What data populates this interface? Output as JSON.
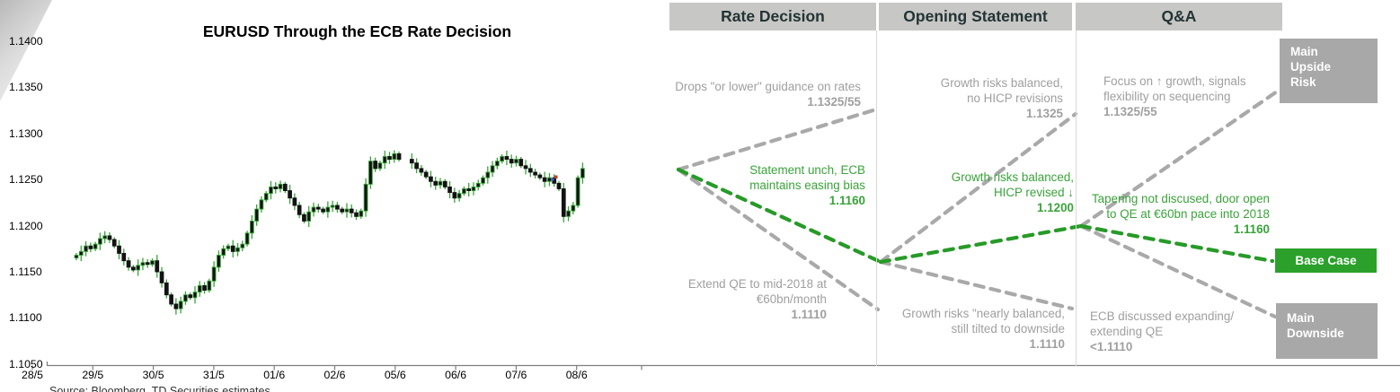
{
  "chart_data": {
    "type": "candlestick",
    "title": "EURUSD Through the ECB Rate Decision",
    "instrument": "EURUSD",
    "grid": false,
    "y_ticks": [
      "1.1400",
      "1.1350",
      "1.1300",
      "1.1250",
      "1.1200",
      "1.1150",
      "1.1100",
      "1.1050"
    ],
    "y_range": [
      1.105,
      1.14
    ],
    "x_labels": [
      "28/5",
      "29/5",
      "30/5",
      "31/5",
      "01/6",
      "02/6",
      "05/6",
      "06/6",
      "07/6",
      "08/6"
    ],
    "open_start": 1.1165,
    "days": [
      {
        "label": "28/5",
        "closes": [
          1.1168,
          1.1172,
          1.1178,
          1.1175
        ]
      },
      {
        "label": "29/5",
        "closes": [
          1.118,
          1.1186,
          1.1189,
          1.1185,
          1.1178,
          1.117,
          1.1162,
          1.1155,
          1.1152,
          1.1157,
          1.116,
          1.1158,
          1.1162
        ]
      },
      {
        "label": "30/5",
        "closes": [
          1.115,
          1.1138,
          1.1125,
          1.1115,
          1.111,
          1.1118,
          1.1125,
          1.1122,
          1.1128,
          1.1135,
          1.113,
          1.114,
          1.1155
        ]
      },
      {
        "label": "31/5",
        "closes": [
          1.1168,
          1.1175,
          1.1178,
          1.1172,
          1.1176,
          1.118,
          1.1192,
          1.1205,
          1.1218,
          1.1228,
          1.1235,
          1.1242,
          1.124
        ]
      },
      {
        "label": "01/6",
        "closes": [
          1.1245,
          1.1238,
          1.123,
          1.1222,
          1.1212,
          1.1205,
          1.1215,
          1.122,
          1.1218,
          1.1215,
          1.122,
          1.1222,
          1.1218
        ]
      },
      {
        "label": "02/6",
        "closes": [
          1.1215,
          1.1218,
          1.1214,
          1.121,
          1.1216,
          1.1245,
          1.127,
          1.1262,
          1.1268,
          1.1275,
          1.1272,
          1.1278,
          1.1272
        ]
      },
      {
        "label": "05/6",
        "closes": [
          1.1268,
          1.1262,
          1.1258,
          1.1253,
          1.1248,
          1.1244,
          1.1248,
          1.1242,
          1.1236,
          1.123,
          1.1235,
          1.124,
          1.1238
        ]
      },
      {
        "label": "06/6",
        "closes": [
          1.1242,
          1.1246,
          1.1252,
          1.1258,
          1.1265,
          1.127,
          1.1275,
          1.1272,
          1.1268,
          1.1272,
          1.1265,
          1.1262,
          1.1258
        ]
      },
      {
        "label": "07/6",
        "closes": [
          1.1255,
          1.1252,
          1.1248,
          1.1252,
          1.1246,
          1.124,
          1.121,
          1.1216,
          1.1222,
          1.1252,
          1.1262
        ]
      }
    ],
    "markers": [
      {
        "name": "red-price-marker",
        "color": "#cf3a2a"
      },
      {
        "name": "blue-price-marker",
        "color": "#3a5fcf"
      }
    ],
    "source_note": "Source: Bloomberg, TD Securities estimates",
    "colors": {
      "wick": "#3aa33a",
      "body": "#121212",
      "up_outline": "#2f9e2f",
      "axis": "#7f7f7f"
    }
  },
  "decision_tree": {
    "columns": [
      {
        "id": "rate-decision",
        "label": "Rate Decision"
      },
      {
        "id": "opening-statement",
        "label": "Opening Statement"
      },
      {
        "id": "qa",
        "label": "Q&A"
      }
    ],
    "outcomes": [
      {
        "id": "upside",
        "label": "Main Upside Risk",
        "color": "#a8a8a8"
      },
      {
        "id": "base",
        "label": "Base Case",
        "color": "#2ba12b"
      },
      {
        "id": "downside",
        "label": "Main Downside",
        "color": "#a8a8a8"
      }
    ],
    "labels": [
      {
        "id": "rd-up",
        "lines": [
          "Drops \"or lower\" guidance on rates"
        ],
        "value": "1.1325/55",
        "tone": "gray"
      },
      {
        "id": "rd-base",
        "lines": [
          "Statement unch, ECB",
          "maintains easing bias"
        ],
        "value": "1.1160",
        "tone": "green"
      },
      {
        "id": "rd-down",
        "lines": [
          "Extend QE to mid-2018 at",
          "€60bn/month"
        ],
        "value": "1.1110",
        "tone": "gray"
      },
      {
        "id": "os-up",
        "lines": [
          "Growth risks balanced,",
          "no HICP revisions"
        ],
        "value": "1.1325",
        "tone": "gray"
      },
      {
        "id": "os-base",
        "lines": [
          "Growth risks balanced,",
          "HICP revised ↓"
        ],
        "value": "1.1200",
        "tone": "green"
      },
      {
        "id": "os-down",
        "lines": [
          "Growth risks \"nearly balanced,",
          "still tilted to downside"
        ],
        "value": "1.1110",
        "tone": "gray"
      },
      {
        "id": "qa-up",
        "lines": [
          "Focus on ↑ growth, signals",
          "flexibility on sequencing"
        ],
        "value": "1.1325/55",
        "tone": "gray"
      },
      {
        "id": "qa-base",
        "lines": [
          "Tapering not discused, door open",
          "to QE at €60bn pace into 2018"
        ],
        "value": "1.1160",
        "tone": "green"
      },
      {
        "id": "qa-down",
        "lines": [
          "ECB discussed expanding/",
          "extending QE"
        ],
        "value": "<1.1110",
        "tone": "gray"
      }
    ],
    "edges": [
      {
        "from": "rate-apex",
        "to": "rd-up-end",
        "tone": "gray"
      },
      {
        "from": "rate-apex",
        "to": "rd-down-end",
        "tone": "gray"
      },
      {
        "from": "rate-apex",
        "to": "os-junction",
        "tone": "green"
      },
      {
        "from": "os-junction",
        "to": "os-up-end",
        "tone": "gray"
      },
      {
        "from": "os-junction",
        "to": "os-down-end",
        "tone": "gray"
      },
      {
        "from": "os-junction",
        "to": "qa-junction",
        "tone": "green"
      },
      {
        "from": "qa-junction",
        "to": "upside-box",
        "tone": "gray"
      },
      {
        "from": "qa-junction",
        "to": "downside-box",
        "tone": "gray"
      },
      {
        "from": "qa-junction",
        "to": "base-box",
        "tone": "green"
      }
    ],
    "edge_colors": {
      "gray": "#a9a9a9",
      "green": "#279a27"
    }
  }
}
